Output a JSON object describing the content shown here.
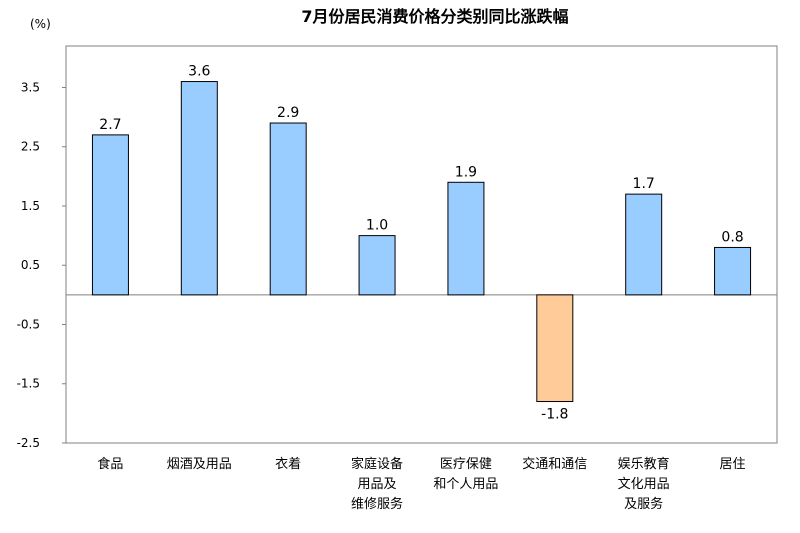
{
  "chart_data": {
    "type": "bar",
    "title": "7月份居民消费价格分类别同比涨跌幅",
    "unit_label": "(%)",
    "xlabel": "",
    "ylabel": "",
    "categories": [
      "食品",
      "烟酒及用品",
      "衣着",
      "家庭设备\n用品及\n维修服务",
      "医疗保健\n和个人用品",
      "交通和通信",
      "娱乐教育\n文化用品\n及服务",
      "居住"
    ],
    "values": [
      2.7,
      3.6,
      2.9,
      1.0,
      1.9,
      -1.8,
      1.7,
      0.8
    ],
    "value_labels": [
      "2.7",
      "3.6",
      "2.9",
      "1.0",
      "1.9",
      "-1.8",
      "1.7",
      "0.8"
    ],
    "yticks": [
      "3.5",
      "2.5",
      "1.5",
      "0.5",
      "-0.5",
      "-1.5",
      "-2.5"
    ],
    "ytick_values": [
      3.5,
      2.5,
      1.5,
      0.5,
      -0.5,
      -1.5,
      -2.5
    ],
    "ylim": [
      -2.5,
      4.2
    ],
    "grid": false,
    "legend": "none"
  },
  "colors": {
    "positive_fill": "#99ccff",
    "negative_fill": "#ffcc99",
    "bar_stroke": "#000000",
    "axis": "#808080",
    "frame": "#808080"
  }
}
